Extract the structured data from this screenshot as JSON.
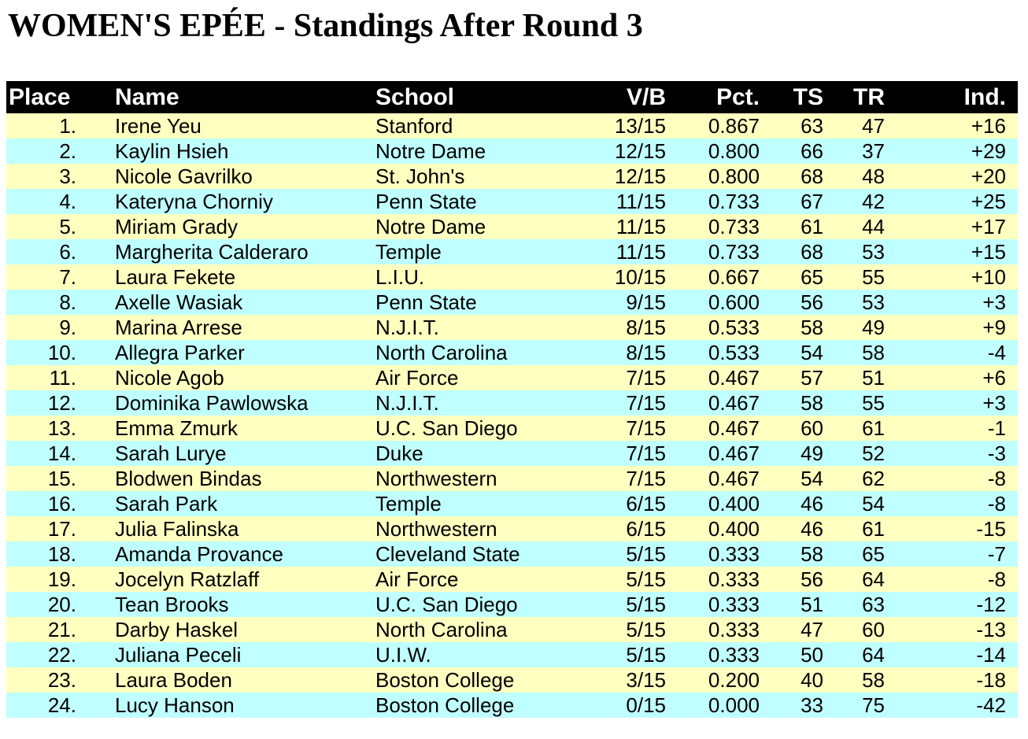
{
  "page": {
    "title": "WOMEN'S EPÉE - Standings After Round 3"
  },
  "colors": {
    "page_bg": "#FFFFFF",
    "text": "#000000",
    "header_bg": "#000000",
    "header_text": "#FFFFFF",
    "row_yellow": "#FFFFC0",
    "row_cyan": "#C0FFFF"
  },
  "table": {
    "columns": [
      "Place",
      "Name",
      "School",
      "V/B",
      "Pct.",
      "TS",
      "TR",
      "Ind."
    ],
    "rows": [
      {
        "place": "1.",
        "name": "Irene Yeu",
        "school": "Stanford",
        "vb": "13/15",
        "pct": "0.867",
        "ts": "63",
        "tr": "47",
        "ind": "+16"
      },
      {
        "place": "2.",
        "name": "Kaylin Hsieh",
        "school": "Notre Dame",
        "vb": "12/15",
        "pct": "0.800",
        "ts": "66",
        "tr": "37",
        "ind": "+29"
      },
      {
        "place": "3.",
        "name": "Nicole Gavrilko",
        "school": "St. John's",
        "vb": "12/15",
        "pct": "0.800",
        "ts": "68",
        "tr": "48",
        "ind": "+20"
      },
      {
        "place": "4.",
        "name": "Kateryna Chorniy",
        "school": "Penn State",
        "vb": "11/15",
        "pct": "0.733",
        "ts": "67",
        "tr": "42",
        "ind": "+25"
      },
      {
        "place": "5.",
        "name": "Miriam Grady",
        "school": "Notre Dame",
        "vb": "11/15",
        "pct": "0.733",
        "ts": "61",
        "tr": "44",
        "ind": "+17"
      },
      {
        "place": "6.",
        "name": "Margherita Calderaro",
        "school": "Temple",
        "vb": "11/15",
        "pct": "0.733",
        "ts": "68",
        "tr": "53",
        "ind": "+15"
      },
      {
        "place": "7.",
        "name": "Laura Fekete",
        "school": "L.I.U.",
        "vb": "10/15",
        "pct": "0.667",
        "ts": "65",
        "tr": "55",
        "ind": "+10"
      },
      {
        "place": "8.",
        "name": "Axelle Wasiak",
        "school": "Penn State",
        "vb": "9/15",
        "pct": "0.600",
        "ts": "56",
        "tr": "53",
        "ind": "+3"
      },
      {
        "place": "9.",
        "name": "Marina Arrese",
        "school": "N.J.I.T.",
        "vb": "8/15",
        "pct": "0.533",
        "ts": "58",
        "tr": "49",
        "ind": "+9"
      },
      {
        "place": "10.",
        "name": "Allegra Parker",
        "school": "North Carolina",
        "vb": "8/15",
        "pct": "0.533",
        "ts": "54",
        "tr": "58",
        "ind": "-4"
      },
      {
        "place": "11.",
        "name": "Nicole Agob",
        "school": "Air Force",
        "vb": "7/15",
        "pct": "0.467",
        "ts": "57",
        "tr": "51",
        "ind": "+6"
      },
      {
        "place": "12.",
        "name": "Dominika Pawlowska",
        "school": "N.J.I.T.",
        "vb": "7/15",
        "pct": "0.467",
        "ts": "58",
        "tr": "55",
        "ind": "+3"
      },
      {
        "place": "13.",
        "name": "Emma Zmurk",
        "school": "U.C. San Diego",
        "vb": "7/15",
        "pct": "0.467",
        "ts": "60",
        "tr": "61",
        "ind": "-1"
      },
      {
        "place": "14.",
        "name": "Sarah Lurye",
        "school": "Duke",
        "vb": "7/15",
        "pct": "0.467",
        "ts": "49",
        "tr": "52",
        "ind": "-3"
      },
      {
        "place": "15.",
        "name": "Blodwen Bindas",
        "school": "Northwestern",
        "vb": "7/15",
        "pct": "0.467",
        "ts": "54",
        "tr": "62",
        "ind": "-8"
      },
      {
        "place": "16.",
        "name": "Sarah Park",
        "school": "Temple",
        "vb": "6/15",
        "pct": "0.400",
        "ts": "46",
        "tr": "54",
        "ind": "-8"
      },
      {
        "place": "17.",
        "name": "Julia Falinska",
        "school": "Northwestern",
        "vb": "6/15",
        "pct": "0.400",
        "ts": "46",
        "tr": "61",
        "ind": "-15"
      },
      {
        "place": "18.",
        "name": "Amanda Provance",
        "school": "Cleveland State",
        "vb": "5/15",
        "pct": "0.333",
        "ts": "58",
        "tr": "65",
        "ind": "-7"
      },
      {
        "place": "19.",
        "name": "Jocelyn Ratzlaff",
        "school": "Air Force",
        "vb": "5/15",
        "pct": "0.333",
        "ts": "56",
        "tr": "64",
        "ind": "-8"
      },
      {
        "place": "20.",
        "name": "Tean Brooks",
        "school": "U.C. San Diego",
        "vb": "5/15",
        "pct": "0.333",
        "ts": "51",
        "tr": "63",
        "ind": "-12"
      },
      {
        "place": "21.",
        "name": "Darby Haskel",
        "school": "North Carolina",
        "vb": "5/15",
        "pct": "0.333",
        "ts": "47",
        "tr": "60",
        "ind": "-13"
      },
      {
        "place": "22.",
        "name": "Juliana Peceli",
        "school": "U.I.W.",
        "vb": "5/15",
        "pct": "0.333",
        "ts": "50",
        "tr": "64",
        "ind": "-14"
      },
      {
        "place": "23.",
        "name": "Laura Boden",
        "school": "Boston College",
        "vb": "3/15",
        "pct": "0.200",
        "ts": "40",
        "tr": "58",
        "ind": "-18"
      },
      {
        "place": "24.",
        "name": "Lucy Hanson",
        "school": "Boston College",
        "vb": "0/15",
        "pct": "0.000",
        "ts": "33",
        "tr": "75",
        "ind": "-42"
      }
    ]
  }
}
